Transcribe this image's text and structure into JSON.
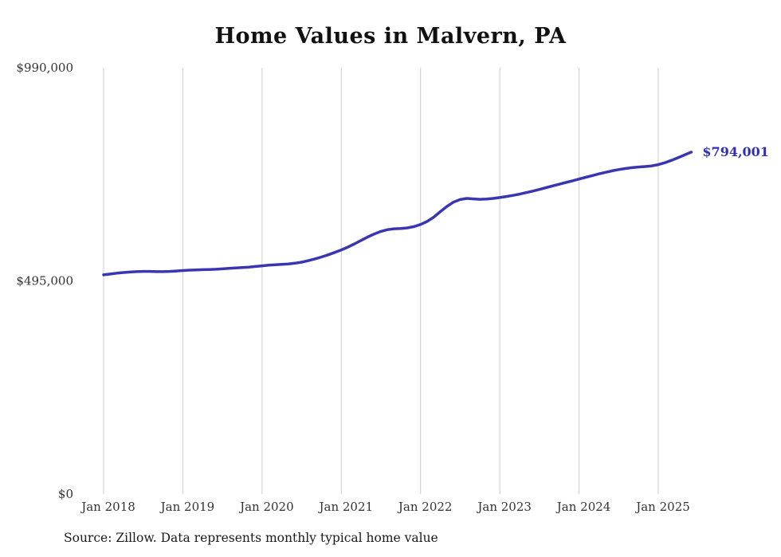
{
  "chart_data": {
    "type": "line",
    "title": "Home Values in Malvern, PA",
    "source_note": "Source: Zillow. Data represents monthly typical home value",
    "end_label": "$794,001",
    "ylim": [
      0,
      990000
    ],
    "grid": "vertical-only",
    "legend": "none",
    "colors": {
      "line": "#3a36b1",
      "end_label": "#2e2eb8",
      "gridline": "#cccccc",
      "tick_text": "#333333"
    },
    "y_ticks": [
      {
        "label": "$0",
        "value": 0
      },
      {
        "label": "$495,000",
        "value": 495000
      },
      {
        "label": "$990,000",
        "value": 990000
      }
    ],
    "x_tick_labels": [
      "Jan 2018",
      "Jan 2019",
      "Jan 2020",
      "Jan 2021",
      "Jan 2022",
      "Jan 2023",
      "Jan 2024",
      "Jan 2025"
    ],
    "series": [
      {
        "name": "Typical home value",
        "x": [
          "Jan 2018",
          "Feb 2018",
          "Mar 2018",
          "Apr 2018",
          "May 2018",
          "Jun 2018",
          "Jul 2018",
          "Aug 2018",
          "Sep 2018",
          "Oct 2018",
          "Nov 2018",
          "Dec 2018",
          "Jan 2019",
          "Feb 2019",
          "Mar 2019",
          "Apr 2019",
          "May 2019",
          "Jun 2019",
          "Jul 2019",
          "Aug 2019",
          "Sep 2019",
          "Oct 2019",
          "Nov 2019",
          "Dec 2019",
          "Jan 2020",
          "Feb 2020",
          "Mar 2020",
          "Apr 2020",
          "May 2020",
          "Jun 2020",
          "Jul 2020",
          "Aug 2020",
          "Sep 2020",
          "Oct 2020",
          "Nov 2020",
          "Dec 2020",
          "Jan 2021",
          "Feb 2021",
          "Mar 2021",
          "Apr 2021",
          "May 2021",
          "Jun 2021",
          "Jul 2021",
          "Aug 2021",
          "Sep 2021",
          "Oct 2021",
          "Nov 2021",
          "Dec 2021",
          "Jan 2022",
          "Feb 2022",
          "Mar 2022",
          "Apr 2022",
          "May 2022",
          "Jun 2022",
          "Jul 2022",
          "Aug 2022",
          "Sep 2022",
          "Oct 2022",
          "Nov 2022",
          "Dec 2022",
          "Jan 2023",
          "Feb 2023",
          "Mar 2023",
          "Apr 2023",
          "May 2023",
          "Jun 2023",
          "Jul 2023",
          "Aug 2023",
          "Sep 2023",
          "Oct 2023",
          "Nov 2023",
          "Dec 2023",
          "Jan 2024",
          "Feb 2024",
          "Mar 2024",
          "Apr 2024",
          "May 2024",
          "Jun 2024",
          "Jul 2024",
          "Aug 2024",
          "Sep 2024",
          "Oct 2024",
          "Nov 2024",
          "Dec 2024",
          "Jan 2025",
          "Feb 2025",
          "Mar 2025",
          "Apr 2025",
          "May 2025",
          "Jun 2025"
        ],
        "values": [
          509000,
          511000,
          513000,
          514500,
          515500,
          516500,
          517000,
          517000,
          516500,
          516500,
          517000,
          518000,
          519000,
          520000,
          520500,
          521000,
          521500,
          522000,
          523000,
          524000,
          525000,
          526000,
          527000,
          528500,
          530000,
          531500,
          532500,
          533500,
          534500,
          536000,
          538500,
          542000,
          546000,
          550500,
          555500,
          561000,
          567000,
          573500,
          581000,
          589000,
          597000,
          604000,
          610000,
          614000,
          616000,
          616500,
          618000,
          621000,
          626000,
          633000,
          643000,
          656000,
          668000,
          678000,
          684000,
          686500,
          685500,
          684500,
          685000,
          686500,
          688500,
          691000,
          693500,
          696500,
          700000,
          703500,
          707500,
          711500,
          715500,
          719500,
          723500,
          727500,
          731500,
          735500,
          739500,
          743500,
          747000,
          750500,
          753500,
          756000,
          758000,
          759500,
          760500,
          762000,
          765000,
          769500,
          775000,
          781000,
          787500,
          794001
        ]
      }
    ]
  }
}
